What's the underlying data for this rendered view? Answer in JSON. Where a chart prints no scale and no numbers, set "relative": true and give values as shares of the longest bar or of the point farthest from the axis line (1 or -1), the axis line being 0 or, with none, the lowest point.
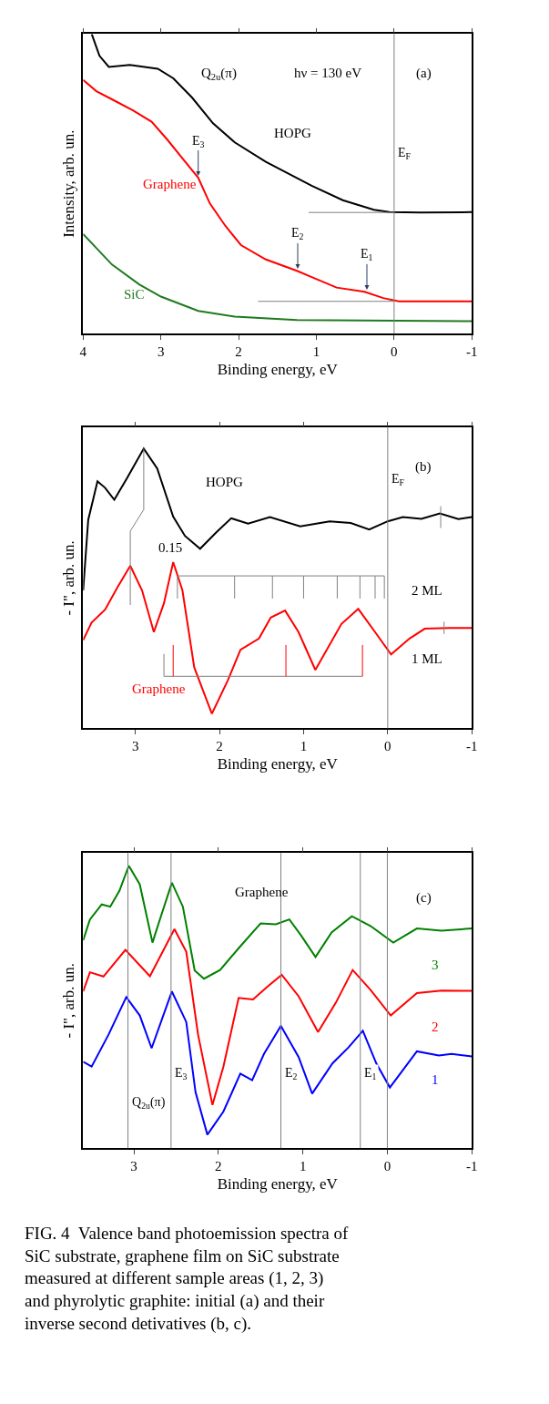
{
  "chart_data": [
    {
      "type": "line",
      "relative": true,
      "xlabel": "Binding energy, eV",
      "ylabel": "Intensity, arb. un.",
      "xlim": [
        4,
        -1
      ],
      "xticks": [
        4,
        3,
        2,
        1,
        0,
        -1
      ],
      "tick_labels": "x",
      "annotations": [
        "Q$_{2u}$(π)",
        "hν = 130 eV",
        "(a)",
        {
          "text": "E$_{3}$",
          "x": 2.52,
          "y": 0.52
        },
        {
          "text": "E$_{2}$",
          "x": 1.24,
          "y": 0.21
        },
        {
          "text": "E$_{1}$",
          "x": 0.35,
          "y": 0.14
        }
      ],
      "ref_lines": [
        {
          "axis": "x",
          "value": 0,
          "label": "E$_{F}$",
          "color": "#808080"
        }
      ],
      "series": [
        {
          "name": "HOPG",
          "color": "#000000",
          "x": [
            3.89,
            3.79,
            3.67,
            3.4,
            3.04,
            2.84,
            2.6,
            2.33,
            2.05,
            1.65,
            1.06,
            0.66,
            0.26,
            0.06,
            -0.33,
            -1
          ],
          "values": [
            1.0,
            0.927,
            0.89,
            0.897,
            0.884,
            0.852,
            0.788,
            0.702,
            0.638,
            0.573,
            0.493,
            0.445,
            0.413,
            0.405,
            0.404,
            0.405
          ]
        },
        {
          "name": "Graphene",
          "color": "#ff0000",
          "x": [
            4,
            3.83,
            3.63,
            3.36,
            3.12,
            2.92,
            2.72,
            2.52,
            2.37,
            2.17,
            1.97,
            1.65,
            1.25,
            1.06,
            0.74,
            0.38,
            0.14,
            -0.06,
            -1
          ],
          "values": [
            0.847,
            0.809,
            0.782,
            0.745,
            0.707,
            0.648,
            0.584,
            0.52,
            0.434,
            0.359,
            0.295,
            0.247,
            0.209,
            0.188,
            0.153,
            0.139,
            0.118,
            0.107,
            0.107
          ]
        },
        {
          "name": "SiC",
          "color": "#1f7a1f",
          "x": [
            4,
            3.63,
            3.28,
            3.0,
            2.52,
            2.05,
            1.25,
            -1
          ],
          "values": [
            0.332,
            0.23,
            0.164,
            0.123,
            0.075,
            0.056,
            0.045,
            0.041
          ]
        },
        {
          "color": "#808080",
          "x": [
            1.1,
            0
          ],
          "values": [
            0.404,
            0.404
          ]
        },
        {
          "color": "#808080",
          "x": [
            1.75,
            0
          ],
          "values": [
            0.107,
            0.107
          ]
        }
      ]
    },
    {
      "type": "line",
      "relative": true,
      "xlabel": "Binding energy, eV",
      "ylabel": "- I\", arb. un.",
      "xlim": [
        3.62,
        -1
      ],
      "xticks": [
        3,
        2,
        1,
        0,
        -1
      ],
      "tick_labels": "x",
      "annotations": [
        "0.15",
        "2 ML",
        "1 ML",
        "(b)"
      ],
      "ref_lines": [
        {
          "axis": "x",
          "value": 0,
          "label": "E$_{F}$",
          "color": "#808080"
        }
      ],
      "series": [
        {
          "name": "HOPG",
          "color": "#000000",
          "x": [
            3.62,
            3.56,
            3.45,
            3.36,
            3.25,
            3.1,
            2.9,
            2.74,
            2.55,
            2.41,
            2.23,
            2.04,
            1.86,
            1.66,
            1.4,
            1.04,
            0.69,
            0.44,
            0.22,
            0.0,
            -0.18,
            -0.4,
            -0.62,
            -0.84,
            -1
          ],
          "values": [
            0.493,
            0.745,
            0.883,
            0.86,
            0.817,
            0.894,
            1.0,
            0.929,
            0.757,
            0.688,
            0.642,
            0.7,
            0.751,
            0.732,
            0.755,
            0.722,
            0.74,
            0.734,
            0.711,
            0.74,
            0.755,
            0.749,
            0.768,
            0.748,
            0.755
          ]
        },
        {
          "name": "Graphene",
          "color": "#ff0000",
          "x": [
            3.62,
            3.52,
            3.36,
            3.21,
            3.06,
            2.92,
            2.78,
            2.66,
            2.55,
            2.44,
            2.3,
            2.09,
            1.9,
            1.75,
            1.53,
            1.39,
            1.22,
            1.06,
            0.86,
            0.55,
            0.35,
            0.15,
            -0.04,
            -0.26,
            -0.44,
            -0.73,
            -1
          ],
          "values": [
            0.315,
            0.378,
            0.424,
            0.505,
            0.581,
            0.493,
            0.344,
            0.447,
            0.594,
            0.493,
            0.218,
            0.052,
            0.172,
            0.281,
            0.321,
            0.396,
            0.421,
            0.344,
            0.209,
            0.373,
            0.427,
            0.344,
            0.264,
            0.321,
            0.356,
            0.359,
            0.359
          ]
        },
        {
          "color": "#808080",
          "x": [
            -0.63,
            -0.63
          ],
          "values": [
            0.716,
            0.794
          ]
        },
        {
          "color": "#808080",
          "x": [
            -0.67,
            -0.67
          ],
          "values": [
            0.337,
            0.381
          ]
        },
        {
          "color": "#808080",
          "x": [
            3.06,
            3.06,
            2.9,
            2.9
          ],
          "values": [
            0.441,
            0.705,
            0.782,
            1.0
          ]
        },
        {
          "color": "#808080",
          "x": [
            2.5,
            2.5,
            0.04,
            0.04
          ],
          "values": [
            0.464,
            0.545,
            0.545,
            0.464
          ]
        },
        {
          "color": "#808080",
          "x": [
            1.82,
            1.82
          ],
          "values": [
            0.545,
            0.464
          ]
        },
        {
          "color": "#808080",
          "x": [
            1.37,
            1.37
          ],
          "values": [
            0.545,
            0.464
          ]
        },
        {
          "color": "#808080",
          "x": [
            1.0,
            1.0
          ],
          "values": [
            0.545,
            0.464
          ]
        },
        {
          "color": "#808080",
          "x": [
            0.6,
            0.6
          ],
          "values": [
            0.545,
            0.464
          ]
        },
        {
          "color": "#808080",
          "x": [
            0.33,
            0.33
          ],
          "values": [
            0.545,
            0.464
          ]
        },
        {
          "color": "#808080",
          "x": [
            0.15,
            0.15
          ],
          "values": [
            0.545,
            0.464
          ]
        },
        {
          "color": "#808080",
          "x": [
            2.66,
            2.66,
            0.3
          ],
          "values": [
            0.266,
            0.186,
            0.186
          ]
        },
        {
          "color": "#ff0000",
          "x": [
            2.55,
            2.55
          ],
          "values": [
            0.186,
            0.298
          ]
        },
        {
          "color": "#ff0000",
          "x": [
            1.21,
            1.21
          ],
          "values": [
            0.186,
            0.298
          ]
        },
        {
          "color": "#ff0000",
          "x": [
            0.3,
            0.3
          ],
          "values": [
            0.186,
            0.298
          ]
        }
      ]
    },
    {
      "type": "line",
      "relative": true,
      "xlabel": "Binding energy, eV",
      "ylabel": "- I\", arb. un.",
      "xlim": [
        3.6,
        -1
      ],
      "xticks": [
        3,
        2,
        1,
        0,
        -1
      ],
      "tick_labels": "x",
      "annotations": [
        "Graphene",
        "(c)",
        "FIG. 4  Valence band photoemission spectra of SiC substrate, graphene film on SiC substrate measured at different sample areas (1, 2, 3) and phyrolytic graphite: initial (a) and their inverse second detivatives (b, c)."
      ],
      "ref_lines": [
        {
          "axis": "x",
          "value": 3.07,
          "label": "Q$_{2u}$(π)",
          "color": "#808080"
        },
        {
          "axis": "x",
          "value": 2.56,
          "label": "E$_{3}$",
          "color": "#808080"
        },
        {
          "axis": "x",
          "value": 1.26,
          "label": "E$_{2}$",
          "color": "#808080"
        },
        {
          "axis": "x",
          "value": 0.32,
          "label": "E$_{1}$",
          "color": "#808080"
        },
        {
          "axis": "x",
          "value": 0,
          "color": "#808080"
        }
      ],
      "series": [
        {
          "name": "3",
          "color": "#008000",
          "x": [
            3.6,
            3.52,
            3.38,
            3.28,
            3.17,
            3.06,
            2.93,
            2.78,
            2.68,
            2.55,
            2.42,
            2.28,
            2.17,
            1.98,
            1.76,
            1.5,
            1.32,
            1.16,
            1.02,
            0.85,
            0.66,
            0.42,
            0.2,
            -0.07,
            -0.35,
            -0.64,
            -1
          ],
          "values": [
            0.736,
            0.81,
            0.863,
            0.855,
            0.912,
            1.0,
            0.934,
            0.728,
            0.821,
            0.94,
            0.855,
            0.629,
            0.6,
            0.631,
            0.708,
            0.796,
            0.793,
            0.81,
            0.753,
            0.677,
            0.764,
            0.821,
            0.787,
            0.728,
            0.778,
            0.77,
            0.778
          ]
        },
        {
          "name": "2",
          "color": "#ff0000",
          "x": [
            3.6,
            3.52,
            3.36,
            3.1,
            2.81,
            2.52,
            2.38,
            2.24,
            2.07,
            1.94,
            1.76,
            1.59,
            1.42,
            1.25,
            1.05,
            0.82,
            0.61,
            0.41,
            0.2,
            -0.04,
            -0.35,
            -0.64,
            -1
          ],
          "values": [
            0.555,
            0.623,
            0.608,
            0.702,
            0.609,
            0.776,
            0.696,
            0.402,
            0.153,
            0.289,
            0.532,
            0.527,
            0.572,
            0.614,
            0.538,
            0.411,
            0.515,
            0.631,
            0.561,
            0.47,
            0.549,
            0.558,
            0.557
          ]
        },
        {
          "name": "1",
          "color": "#0000ff",
          "x": [
            3.6,
            3.5,
            3.3,
            3.09,
            2.93,
            2.79,
            2.55,
            2.38,
            2.27,
            2.13,
            1.94,
            1.74,
            1.6,
            1.46,
            1.26,
            1.05,
            0.89,
            0.65,
            0.46,
            0.29,
            0.13,
            -0.03,
            -0.35,
            -0.61,
            -0.76,
            -1
          ],
          "values": [
            0.306,
            0.289,
            0.402,
            0.535,
            0.47,
            0.354,
            0.555,
            0.447,
            0.198,
            0.048,
            0.13,
            0.264,
            0.241,
            0.334,
            0.433,
            0.323,
            0.193,
            0.3,
            0.357,
            0.416,
            0.3,
            0.215,
            0.343,
            0.328,
            0.334,
            0.325
          ]
        }
      ]
    }
  ]
}
